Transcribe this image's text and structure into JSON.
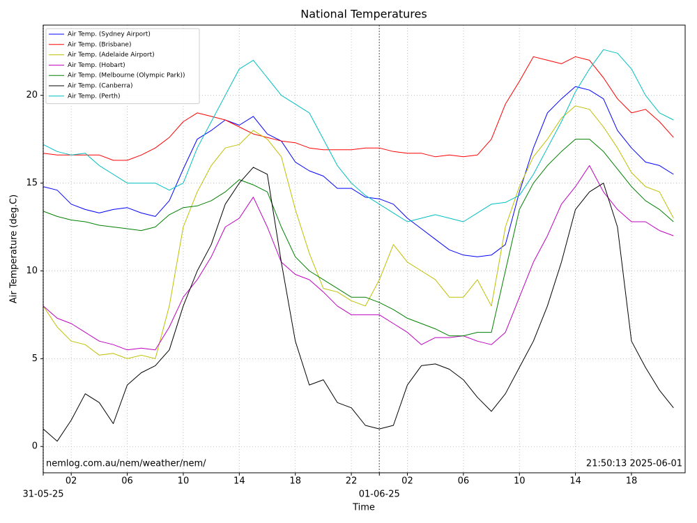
{
  "chart_data": {
    "type": "line",
    "title": "National Temperatures",
    "xlabel": "Time",
    "ylabel": "Air Temperature (deg.C)",
    "annotations": [
      "nemlog.com.au/nem/weather/nem/",
      "21:50:13 2025-06-01"
    ],
    "x": [
      "31-05-25 00:00",
      "31-05-25 01:00",
      "31-05-25 02:00",
      "31-05-25 03:00",
      "31-05-25 04:00",
      "31-05-25 05:00",
      "31-05-25 06:00",
      "31-05-25 07:00",
      "31-05-25 08:00",
      "31-05-25 09:00",
      "31-05-25 10:00",
      "31-05-25 11:00",
      "31-05-25 12:00",
      "31-05-25 13:00",
      "31-05-25 14:00",
      "31-05-25 15:00",
      "31-05-25 16:00",
      "31-05-25 17:00",
      "31-05-25 18:00",
      "31-05-25 19:00",
      "31-05-25 20:00",
      "31-05-25 21:00",
      "31-05-25 22:00",
      "31-05-25 23:00",
      "01-06-25 00:00",
      "01-06-25 01:00",
      "01-06-25 02:00",
      "01-06-25 03:00",
      "01-06-25 04:00",
      "01-06-25 05:00",
      "01-06-25 06:00",
      "01-06-25 07:00",
      "01-06-25 08:00",
      "01-06-25 09:00",
      "01-06-25 10:00",
      "01-06-25 11:00",
      "01-06-25 12:00",
      "01-06-25 13:00",
      "01-06-25 14:00",
      "01-06-25 15:00",
      "01-06-25 16:00",
      "01-06-25 17:00",
      "01-06-25 18:00",
      "01-06-25 19:00",
      "01-06-25 20:00",
      "01-06-25 21:00"
    ],
    "series": [
      {
        "name": "Air Temp. (Sydney Airport)",
        "color": "#0000ff",
        "values": [
          14.8,
          14.6,
          13.8,
          13.5,
          13.3,
          13.5,
          13.6,
          13.3,
          13.1,
          14.0,
          15.8,
          17.5,
          18.0,
          18.6,
          18.3,
          18.8,
          17.8,
          17.4,
          16.2,
          15.7,
          15.4,
          14.7,
          14.7,
          14.2,
          14.1,
          13.8,
          13.0,
          12.4,
          11.8,
          11.2,
          10.9,
          10.8,
          10.9,
          11.5,
          14.5,
          17.0,
          19.0,
          19.8,
          20.5,
          20.3,
          19.8,
          18.0,
          17.0,
          16.2,
          16.0,
          15.5
        ]
      },
      {
        "name": "Air Temp. (Brisbane)",
        "color": "#ff0000",
        "values": [
          16.7,
          16.6,
          16.6,
          16.6,
          16.6,
          16.3,
          16.3,
          16.6,
          17.0,
          17.6,
          18.5,
          19.0,
          18.8,
          18.6,
          18.2,
          17.8,
          17.6,
          17.4,
          17.3,
          17.0,
          16.9,
          16.9,
          16.9,
          17.0,
          17.0,
          16.8,
          16.7,
          16.7,
          16.5,
          16.6,
          16.5,
          16.6,
          17.5,
          19.5,
          20.8,
          22.2,
          22.0,
          21.8,
          22.2,
          22.0,
          21.0,
          19.8,
          19.0,
          19.2,
          18.5,
          17.6
        ]
      },
      {
        "name": "Air Temp. (Adelaide Airport)",
        "color": "#bfbf00",
        "values": [
          8.0,
          6.8,
          6.0,
          5.8,
          5.2,
          5.3,
          5.0,
          5.2,
          5.0,
          8.0,
          12.5,
          14.5,
          16.0,
          17.0,
          17.2,
          18.0,
          17.5,
          16.5,
          13.5,
          11.0,
          9.0,
          8.8,
          8.3,
          8.0,
          9.5,
          11.5,
          10.5,
          10.0,
          9.5,
          8.5,
          8.5,
          9.5,
          8.0,
          12.5,
          14.8,
          16.5,
          17.5,
          18.7,
          19.4,
          19.2,
          18.2,
          17.0,
          15.6,
          14.8,
          14.5,
          13.0
        ]
      },
      {
        "name": "Air Temp. (Hobart)",
        "color": "#bf00bf",
        "values": [
          8.0,
          7.3,
          7.0,
          6.5,
          6.0,
          5.8,
          5.5,
          5.6,
          5.5,
          6.8,
          8.5,
          9.5,
          10.8,
          12.5,
          13.0,
          14.2,
          12.5,
          10.5,
          9.8,
          9.5,
          8.8,
          8.0,
          7.5,
          7.5,
          7.5,
          7.0,
          6.5,
          5.8,
          6.2,
          6.2,
          6.3,
          6.0,
          5.8,
          6.5,
          8.5,
          10.5,
          12.0,
          13.8,
          14.8,
          16.0,
          14.5,
          13.5,
          12.8,
          12.8,
          12.3,
          12.0
        ]
      },
      {
        "name": "Air Temp. (Melbourne (Olympic Park))",
        "color": "#008000",
        "values": [
          13.4,
          13.1,
          12.9,
          12.8,
          12.6,
          12.5,
          12.4,
          12.3,
          12.5,
          13.2,
          13.6,
          13.7,
          14.0,
          14.5,
          15.2,
          14.9,
          14.5,
          12.5,
          10.8,
          10.0,
          9.5,
          9.0,
          8.5,
          8.5,
          8.2,
          7.8,
          7.3,
          7.0,
          6.7,
          6.3,
          6.3,
          6.5,
          6.5,
          10.0,
          13.5,
          15.0,
          16.0,
          16.8,
          17.5,
          17.5,
          16.8,
          15.8,
          14.8,
          14.0,
          13.5,
          12.8
        ]
      },
      {
        "name": "Air Temp. (Canberra)",
        "color": "#000000",
        "values": [
          1.0,
          0.3,
          1.5,
          3.0,
          2.5,
          1.3,
          3.5,
          4.2,
          4.6,
          5.5,
          8.0,
          10.0,
          11.5,
          13.8,
          15.0,
          15.9,
          15.5,
          10.5,
          6.0,
          3.5,
          3.8,
          2.5,
          2.2,
          1.2,
          1.0,
          1.2,
          3.5,
          4.6,
          4.7,
          4.4,
          3.8,
          2.8,
          2.0,
          3.0,
          4.5,
          6.0,
          8.0,
          10.5,
          13.5,
          14.5,
          15.0,
          12.5,
          6.0,
          4.5,
          3.2,
          2.2
        ]
      },
      {
        "name": "Air Temp. (Perth)",
        "color": "#00bfbf",
        "values": [
          17.2,
          16.8,
          16.6,
          16.7,
          16.0,
          15.5,
          15.0,
          15.0,
          15.0,
          14.6,
          15.0,
          17.0,
          18.5,
          20.0,
          21.5,
          22.0,
          21.0,
          20.0,
          19.5,
          19.0,
          17.5,
          16.0,
          15.0,
          14.3,
          13.8,
          13.3,
          12.8,
          13.0,
          13.2,
          13.0,
          12.8,
          13.3,
          13.8,
          13.9,
          14.3,
          15.5,
          17.0,
          18.5,
          20.2,
          21.5,
          22.6,
          22.4,
          21.5,
          20.0,
          19.0,
          18.6
        ]
      }
    ],
    "xlim": [
      "31-05-25 00:00",
      "01-06-25 21:50"
    ],
    "xticks": [
      {
        "value": "31-05-25 00:00",
        "label": "31-05-25"
      },
      {
        "value": "31-05-25 02:00",
        "label": "02"
      },
      {
        "value": "31-05-25 06:00",
        "label": "06"
      },
      {
        "value": "31-05-25 10:00",
        "label": "10"
      },
      {
        "value": "31-05-25 14:00",
        "label": "14"
      },
      {
        "value": "31-05-25 18:00",
        "label": "18"
      },
      {
        "value": "31-05-25 22:00",
        "label": "22"
      },
      {
        "value": "01-06-25 00:00",
        "label": "01-06-25"
      },
      {
        "value": "01-06-25 02:00",
        "label": "02"
      },
      {
        "value": "01-06-25 06:00",
        "label": "06"
      },
      {
        "value": "01-06-25 10:00",
        "label": "10"
      },
      {
        "value": "01-06-25 14:00",
        "label": "14"
      },
      {
        "value": "01-06-25 18:00",
        "label": "18"
      }
    ],
    "ylim": [
      -1.5,
      24
    ],
    "yticks": [
      0,
      5,
      10,
      15,
      20
    ],
    "grid": true,
    "legend": "upper left"
  }
}
